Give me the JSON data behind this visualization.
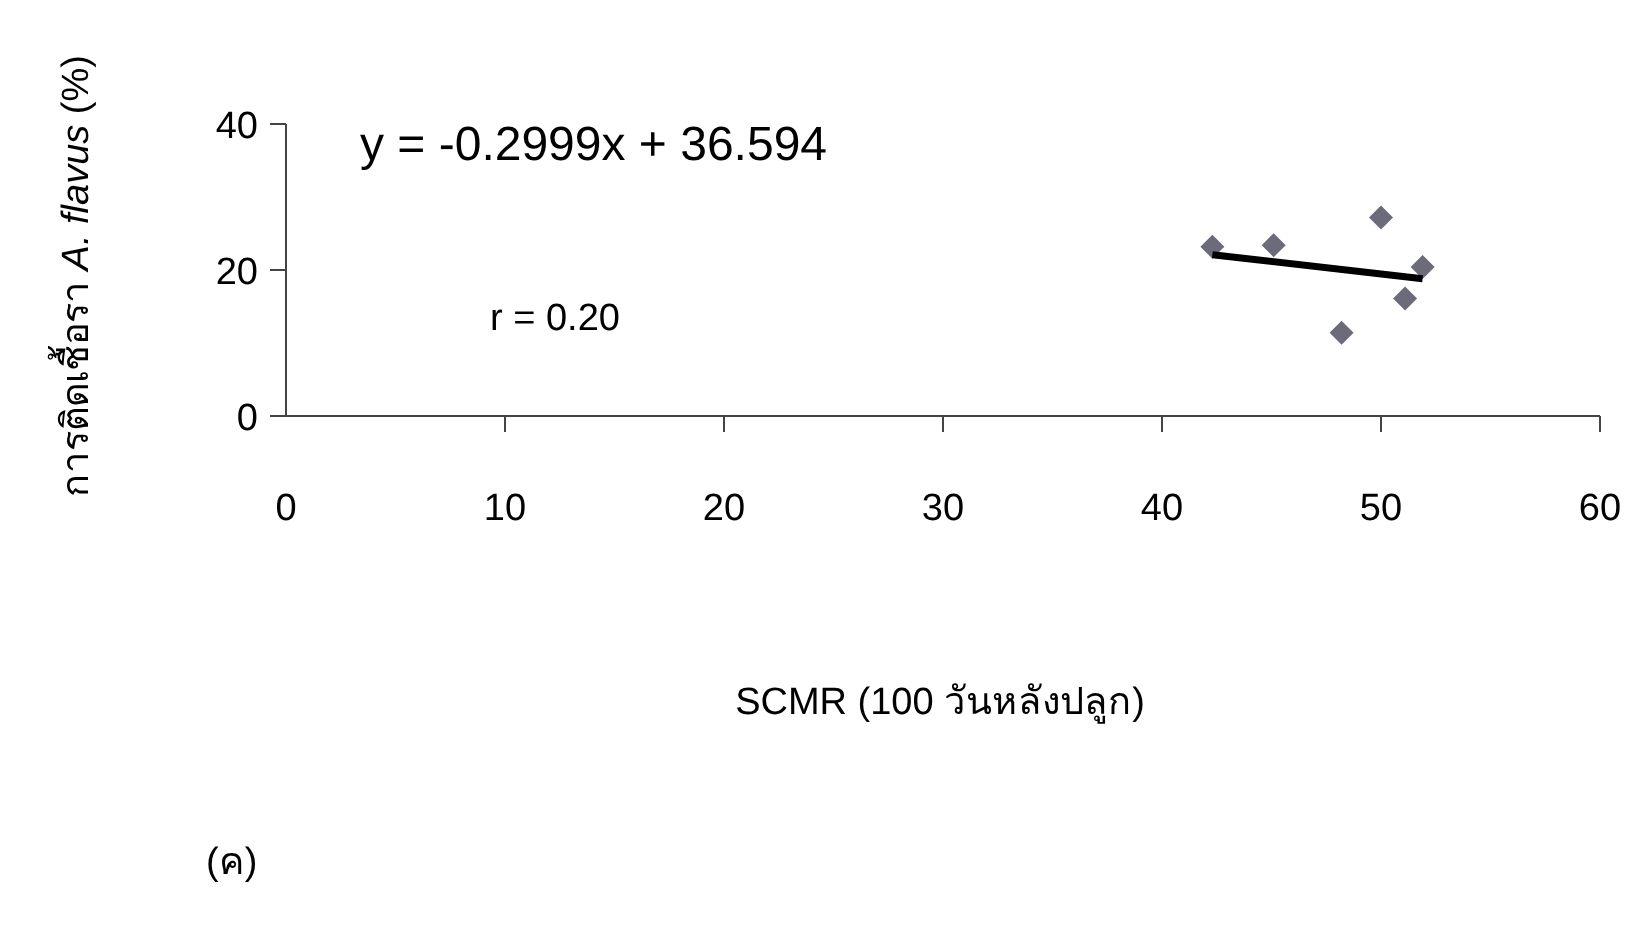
{
  "chart_data": {
    "type": "scatter",
    "xlabel": "SCMR (100 วันหลังปลูก)",
    "ylabel": "การติดเชื้อรา *A. flavus* (%)",
    "xlim": [
      0,
      60
    ],
    "ylim": [
      0,
      40
    ],
    "xticks": [
      0,
      10,
      20,
      30,
      40,
      50,
      60
    ],
    "yticks": [
      0,
      20,
      40
    ],
    "grid": false,
    "marker": "diamond",
    "series": [
      {
        "color": "#6b6b7a",
        "x": [
          42.3,
          45.1,
          48.2,
          50.0,
          51.1,
          51.9
        ],
        "values": [
          23.2,
          23.4,
          11.4,
          27.2,
          16.1,
          20.4
        ]
      },
      {
        "type": "line",
        "color": "#000000",
        "marker": "none",
        "x": [
          42.3,
          51.9
        ],
        "values": [
          22.1,
          18.8
        ]
      }
    ],
    "annotations": [
      "y = -0.2999x + 36.594",
      "r = 0.20",
      "(ค)"
    ]
  }
}
